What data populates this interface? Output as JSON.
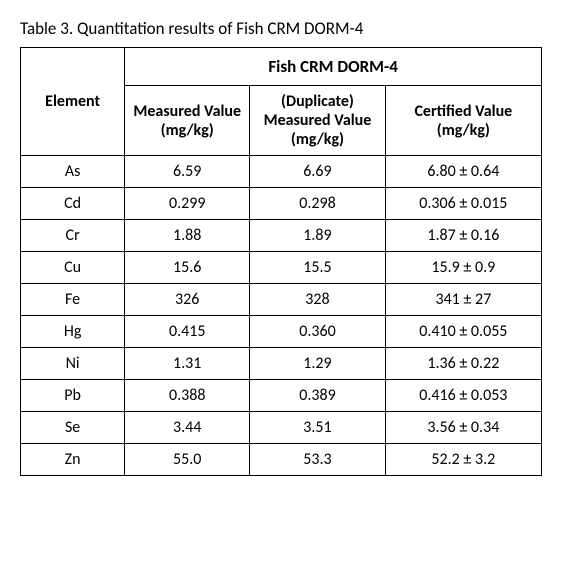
{
  "caption": "Table 3. Quantitation results of Fish CRM DORM-4",
  "group_header": "Fish CRM DORM-4",
  "columns": {
    "element": "Element",
    "measured": "Measured Value (mg/kg)",
    "duplicate": "(Duplicate) Measured Value (mg/kg)",
    "certified": "Certified Value (mg/kg)"
  },
  "rows": [
    {
      "el": "As",
      "m": "6.59",
      "d": "6.69",
      "c": "6.80 ± 0.64"
    },
    {
      "el": "Cd",
      "m": "0.299",
      "d": "0.298",
      "c": "0.306 ± 0.015"
    },
    {
      "el": "Cr",
      "m": "1.88",
      "d": "1.89",
      "c": "1.87 ± 0.16"
    },
    {
      "el": "Cu",
      "m": "15.6",
      "d": "15.5",
      "c": "15.9 ± 0.9"
    },
    {
      "el": "Fe",
      "m": "326",
      "d": "328",
      "c": "341 ± 27"
    },
    {
      "el": "Hg",
      "m": "0.415",
      "d": "0.360",
      "c": "0.410 ± 0.055"
    },
    {
      "el": "Ni",
      "m": "1.31",
      "d": "1.29",
      "c": "1.36 ± 0.22"
    },
    {
      "el": "Pb",
      "m": "0.388",
      "d": "0.389",
      "c": "0.416 ± 0.053"
    },
    {
      "el": "Se",
      "m": "3.44",
      "d": "3.51",
      "c": "3.56 ± 0.34"
    },
    {
      "el": "Zn",
      "m": "55.0",
      "d": "53.3",
      "c": "52.2 ± 3.2"
    }
  ]
}
